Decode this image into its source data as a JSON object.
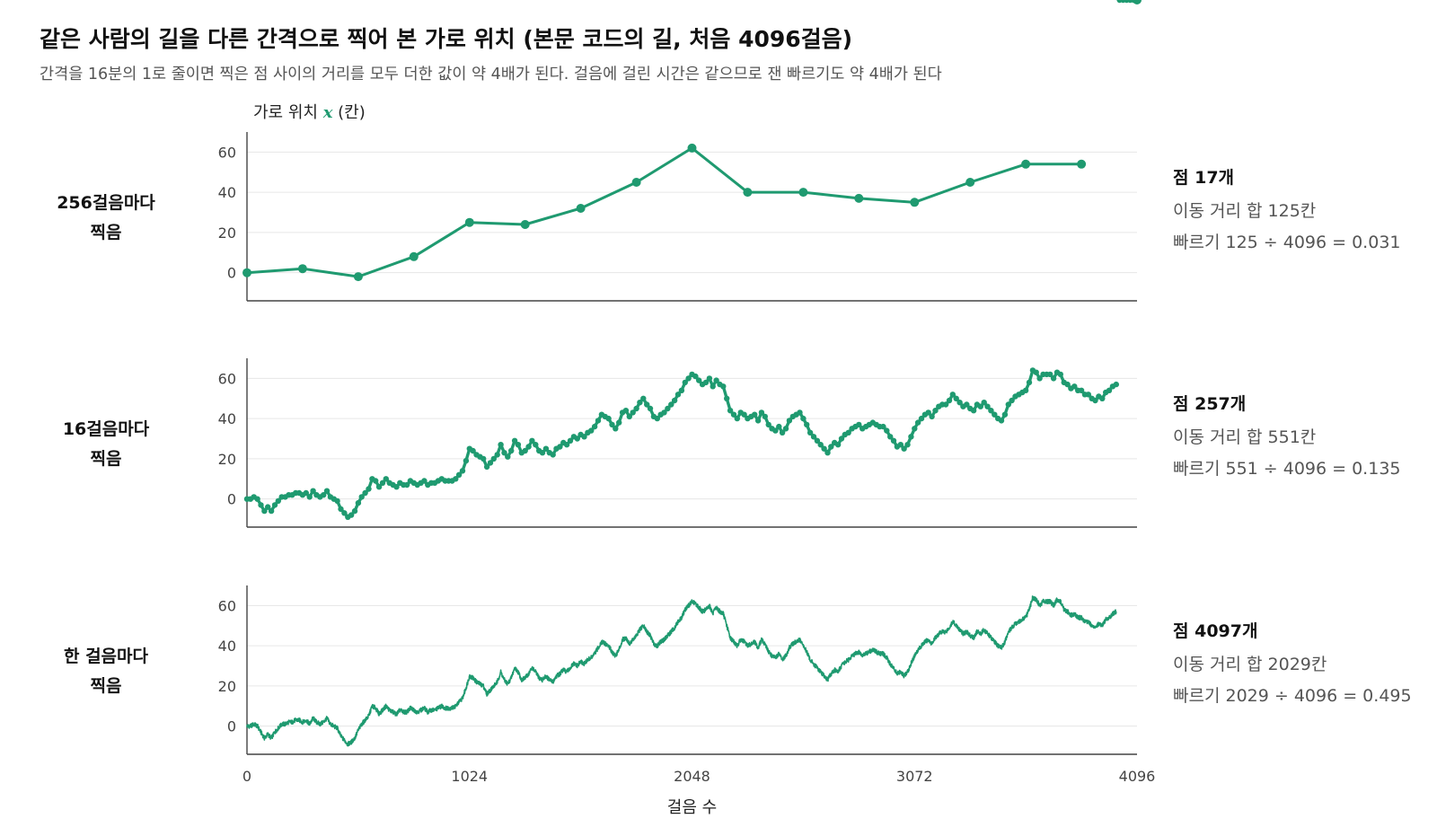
{
  "header": {
    "title": "같은 사람의 길을 다른 간격으로 찍어 본 가로 위치 (본문 코드의 길, 처음 4096걸음)",
    "subtitle": "간격을 16분의 1로 줄이면 찍은 점 사이의 거리를 모두 더한 값이 약 4배가 된다. 걸음에 걸린 시간은 같으므로 잰 빠르기도 약 4배가 된다"
  },
  "chart_data": {
    "type": "line",
    "ylabel_prefix": "가로 위치",
    "ylabel_var": "x",
    "ylabel_suffix": "(칸)",
    "xlabel": "걸음 수",
    "xlim": [
      0,
      4096
    ],
    "ylim": [
      -14,
      70
    ],
    "x_ticks": [
      "0",
      "1024",
      "2048",
      "3072",
      "4096"
    ],
    "y_ticks": [
      "0",
      "20",
      "40",
      "60"
    ],
    "grid": "horizontal",
    "color": "#1f9a70",
    "path_x": [
      0,
      16,
      32,
      48,
      64,
      80,
      96,
      112,
      128,
      144,
      160,
      176,
      192,
      208,
      224,
      240,
      256,
      272,
      288,
      304,
      320,
      336,
      352,
      368,
      384,
      400,
      416,
      432,
      448,
      464,
      480,
      496,
      512,
      528,
      544,
      560,
      576,
      592,
      608,
      624,
      640,
      656,
      672,
      688,
      704,
      720,
      736,
      752,
      768,
      784,
      800,
      816,
      832,
      848,
      864,
      880,
      896,
      912,
      928,
      944,
      960,
      976,
      992,
      1008,
      1024,
      1040,
      1056,
      1072,
      1088,
      1104,
      1120,
      1136,
      1152,
      1168,
      1184,
      1200,
      1216,
      1232,
      1248,
      1264,
      1280,
      1296,
      1312,
      1328,
      1344,
      1360,
      1376,
      1392,
      1408,
      1424,
      1440,
      1456,
      1472,
      1488,
      1504,
      1520,
      1536,
      1552,
      1568,
      1584,
      1600,
      1616,
      1632,
      1648,
      1664,
      1680,
      1696,
      1712,
      1728,
      1744,
      1760,
      1776,
      1792,
      1808,
      1824,
      1840,
      1856,
      1872,
      1888,
      1904,
      1920,
      1936,
      1952,
      1968,
      1984,
      2000,
      2016,
      2032,
      2048,
      2064,
      2080,
      2096,
      2112,
      2128,
      2144,
      2160,
      2176,
      2192,
      2208,
      2224,
      2240,
      2256,
      2272,
      2288,
      2304,
      2320,
      2336,
      2352,
      2368,
      2384,
      2400,
      2416,
      2432,
      2448,
      2464,
      2480,
      2496,
      2512,
      2528,
      2544,
      2560,
      2576,
      2592,
      2608,
      2624,
      2640,
      2656,
      2672,
      2688,
      2704,
      2720,
      2736,
      2752,
      2768,
      2784,
      2800,
      2816,
      2832,
      2848,
      2864,
      2880,
      2896,
      2912,
      2928,
      2944,
      2960,
      2976,
      2992,
      3008,
      3024,
      3040,
      3056,
      3072,
      3088,
      3104,
      3120,
      3136,
      3152,
      3168,
      3184,
      3200,
      3216,
      3232,
      3248,
      3264,
      3280,
      3296,
      3312,
      3328,
      3344,
      3360,
      3376,
      3392,
      3408,
      3424,
      3440,
      3456,
      3472,
      3488,
      3504,
      3520,
      3536,
      3552,
      3568,
      3584,
      3600,
      3616,
      3632,
      3648,
      3664,
      3680,
      3696,
      3712,
      3728,
      3744,
      3760,
      3776,
      3792,
      3808,
      3824,
      3840,
      3856,
      3872,
      3888,
      3904,
      3920,
      3936,
      3952,
      3968,
      3984,
      4000,
      4016,
      4032,
      4048,
      4064,
      4080,
      4096
    ],
    "path_y": [
      0,
      0,
      1,
      0,
      -3,
      -6,
      -4,
      -6,
      -3,
      -1,
      1,
      1,
      2,
      2,
      3,
      3,
      2,
      3,
      1,
      4,
      2,
      1,
      2,
      4,
      1,
      0,
      -1,
      -5,
      -7,
      -9,
      -8,
      -6,
      -2,
      1,
      3,
      5,
      10,
      9,
      6,
      8,
      10,
      8,
      7,
      6,
      8,
      7,
      7,
      9,
      8,
      7,
      8,
      9,
      7,
      8,
      8,
      9,
      10,
      9,
      9,
      9,
      10,
      12,
      14,
      19,
      25,
      24,
      22,
      21,
      20,
      16,
      18,
      20,
      22,
      27,
      23,
      21,
      24,
      29,
      27,
      23,
      24,
      26,
      29,
      27,
      24,
      23,
      25,
      23,
      22,
      25,
      26,
      28,
      27,
      29,
      31,
      30,
      32,
      31,
      33,
      34,
      36,
      39,
      42,
      41,
      40,
      37,
      35,
      38,
      43,
      44,
      41,
      43,
      45,
      48,
      50,
      47,
      45,
      41,
      40,
      42,
      43,
      45,
      47,
      49,
      52,
      54,
      58,
      60,
      62,
      61,
      59,
      57,
      58,
      60,
      56,
      59,
      57,
      56,
      50,
      44,
      42,
      40,
      43,
      42,
      40,
      41,
      42,
      39,
      43,
      41,
      37,
      35,
      34,
      36,
      33,
      35,
      39,
      41,
      42,
      43,
      40,
      37,
      33,
      31,
      29,
      27,
      25,
      23,
      26,
      28,
      27,
      30,
      32,
      33,
      35,
      36,
      37,
      35,
      36,
      37,
      38,
      37,
      36,
      36,
      34,
      31,
      29,
      26,
      27,
      25,
      27,
      31,
      35,
      38,
      40,
      42,
      43,
      41,
      44,
      46,
      47,
      47,
      49,
      52,
      50,
      48,
      46,
      47,
      45,
      44,
      47,
      46,
      48,
      46,
      44,
      42,
      40,
      39,
      42,
      47,
      49,
      51,
      52,
      53,
      54,
      58,
      64,
      63,
      60,
      62,
      62,
      62,
      60,
      63,
      62,
      58,
      57,
      55,
      56,
      54,
      54,
      52,
      52,
      50,
      49,
      51,
      50,
      53,
      54,
      56,
      57
    ]
  },
  "panels": [
    {
      "label": [
        "256걸음마다",
        "찍음"
      ],
      "step": 256,
      "stat_title": "점 17개",
      "stat_distance": "이동 거리 합 125칸",
      "stat_speed": "빠르기 125 ÷ 4096 = 0.031"
    },
    {
      "label": [
        "16걸음마다",
        "찍음"
      ],
      "step": 16,
      "stat_title": "점 257개",
      "stat_distance": "이동 거리 합 551칸",
      "stat_speed": "빠르기 551 ÷ 4096 = 0.135"
    },
    {
      "label": [
        "한 걸음마다",
        "찍음"
      ],
      "step": 1,
      "stat_title": "점 4097개",
      "stat_distance": "이동 거리 합 2029칸",
      "stat_speed": "빠르기 2029 ÷ 4096 = 0.495"
    }
  ]
}
